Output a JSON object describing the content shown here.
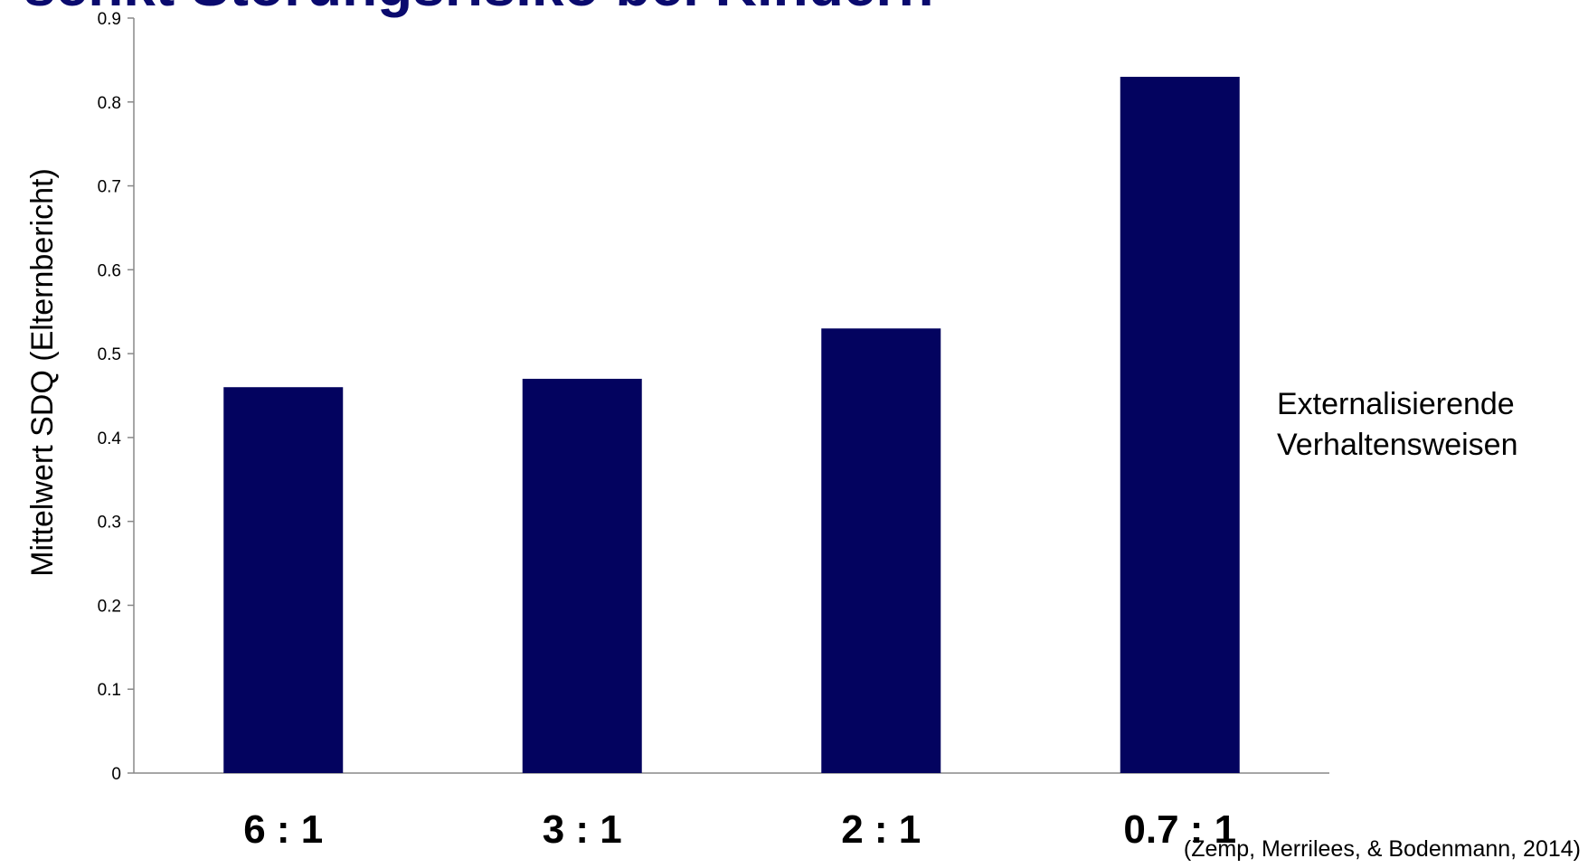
{
  "slide": {
    "title": "senkt Störungsrisiko bei Kindern",
    "source": "(Zemp, Merrilees, & Bodenmann, 2014)"
  },
  "chart_data": {
    "type": "bar",
    "categories": [
      "6 : 1",
      "3 : 1",
      "2 : 1",
      "0.7 : 1"
    ],
    "series": [
      {
        "name": "Externalisierende Verhaltensweisen",
        "values": [
          0.46,
          0.47,
          0.53,
          0.83
        ]
      }
    ],
    "xlabel": "",
    "ylabel": "Mittelwert  SDQ (Elternbericht)",
    "ylim": [
      0,
      0.9
    ],
    "yticks": [
      "0",
      "0.1",
      "0.2",
      "0.3",
      "0.4",
      "0.5",
      "0.6",
      "0.7",
      "0.8",
      "0.9"
    ],
    "grid": false,
    "legend_position": "right",
    "bar_color": "#03035f"
  }
}
